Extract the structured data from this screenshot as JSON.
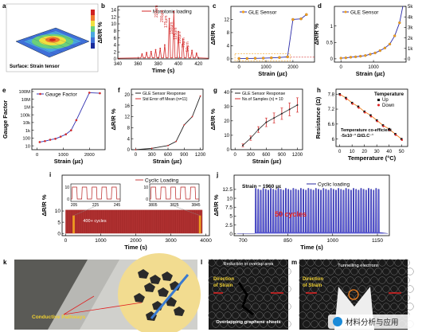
{
  "panels": {
    "a": {
      "letter": "a",
      "caption": "Surface: Strain tensor"
    },
    "b": {
      "letter": "b",
      "legend": "Monotonic loading",
      "peak_labels": [
        "222μm",
        "200μm",
        "175μm",
        "150μm",
        "125μm",
        "100μm",
        "75μm",
        "50μm"
      ]
    },
    "c": {
      "letter": "c",
      "legend": "GLE Sensor"
    },
    "d": {
      "letter": "d",
      "legend": "GLE Sensor",
      "right_ticks": [
        "5k",
        "4k",
        "3k",
        "2k",
        "1k",
        "0"
      ]
    },
    "e": {
      "letter": "e",
      "legend": "Gauge Factor"
    },
    "f": {
      "letter": "f",
      "legend": "GLE Sensor Response",
      "legend2": "Std Error off Mean (n=11)"
    },
    "g": {
      "letter": "g",
      "legend": "GLE Sensor Response",
      "legend2": "No.of Samples (n) = 10"
    },
    "h": {
      "letter": "h",
      "legend_title": "Temperature",
      "legend_up": "Up",
      "legend_down": "Down",
      "annotation1": "Temperature co-efficient",
      "annotation2": "-5x10⁻³ Ω/Ω.C⁻¹"
    },
    "i": {
      "letter": "i",
      "legend": "Cyclic Loading",
      "cycles_label": "400+ cycles",
      "inset1_ticks": [
        "205",
        "225",
        "245"
      ],
      "inset2_ticks": [
        "3805",
        "3825",
        "3845"
      ],
      "inset_y0": "0",
      "inset_y10": "10"
    },
    "j": {
      "letter": "j",
      "strain_label": "Strain ~ 1960 με",
      "legend": "Cyclic loading",
      "cycles_label": "50 cycles"
    },
    "k": {
      "letter": "k",
      "label": "Conductive Pathways"
    },
    "l": {
      "letter": "l",
      "label_top": "Reduction in overlap area",
      "direction": "Direction of Strain",
      "label_bottom": "Overlapping graphene sheets"
    },
    "m": {
      "letter": "m",
      "label_top": "Tunnelling electrons",
      "direction": "Direction of Strain"
    }
  },
  "watermark": "材料分析与应用",
  "chart_data": [
    {
      "panel": "b",
      "type": "line",
      "xlabel": "Time (s)",
      "ylabel": "ΔR/R %",
      "xticks": [
        340,
        360,
        380,
        400,
        420
      ],
      "yticks": [
        0,
        2,
        4,
        6,
        8,
        10,
        12,
        14
      ],
      "xlim": [
        340,
        430
      ],
      "ylim": [
        0,
        15
      ],
      "series": [
        {
          "name": "Monotonic loading",
          "x": [
            364,
            368.5,
            373,
            377.5,
            382,
            386.5,
            391,
            395.5,
            400,
            404.5,
            409,
            413.5,
            418
          ],
          "values": [
            1.4,
            1.8,
            2.1,
            2.6,
            3.0,
            4.0,
            11.5,
            13.5,
            7.8,
            5.6,
            3.4,
            2.4,
            1.6
          ]
        }
      ]
    },
    {
      "panel": "c",
      "type": "line",
      "xlabel": "Strain (με)",
      "ylabel": "ΔR/R %",
      "xticks": [
        0,
        1000,
        2000
      ],
      "yticks": [
        0,
        4,
        8,
        12
      ],
      "xlim": [
        -300,
        2800
      ],
      "ylim": [
        -1,
        16
      ],
      "series": [
        {
          "name": "GLE Sensor",
          "x": [
            0,
            300,
            600,
            900,
            1200,
            1500,
            1800,
            2000,
            2300,
            2500
          ],
          "values": [
            0.1,
            0.1,
            0.15,
            0.2,
            0.3,
            0.4,
            0.6,
            12.0,
            12.2,
            13.5
          ]
        }
      ]
    },
    {
      "panel": "d",
      "type": "line",
      "xlabel": "Strain (με)",
      "ylabel": "ΔR/R %",
      "xticks": [
        0,
        1000
      ],
      "yticks": [
        0.0,
        0.5,
        1.0
      ],
      "xlim": [
        -200,
        2000
      ],
      "ylim": [
        -0.1,
        1.6
      ],
      "series": [
        {
          "name": "GLE Sensor",
          "x": [
            0,
            150,
            300,
            450,
            600,
            750,
            900,
            1050,
            1200,
            1350,
            1500,
            1650,
            1800
          ],
          "values": [
            0.02,
            0.03,
            0.05,
            0.06,
            0.08,
            0.1,
            0.14,
            0.18,
            0.25,
            0.33,
            0.45,
            0.7,
            1.1
          ]
        }
      ]
    },
    {
      "panel": "e",
      "type": "line",
      "xlabel": "Strain (με)",
      "ylabel": "Gauge Factor",
      "yticks": [
        "10",
        "100",
        "1k",
        "10k",
        "100k",
        "1M",
        "10M",
        "100M"
      ],
      "xticks": [
        0,
        1000,
        2000
      ],
      "xlim": [
        -200,
        2600
      ],
      "ylim_log10": [
        0.5,
        8.3
      ],
      "yscale": "log",
      "series": [
        {
          "name": "Gauge Factor",
          "x": [
            100,
            300,
            500,
            700,
            900,
            1100,
            1300,
            1500,
            2000,
            2400
          ],
          "values": [
            30,
            40,
            60,
            80,
            150,
            300,
            1000,
            20000,
            70000000,
            60000000
          ]
        }
      ]
    },
    {
      "panel": "f",
      "type": "line",
      "xlabel": "Strain (με)",
      "ylabel": "ΔR/R %",
      "xticks": [
        0,
        300,
        600,
        900,
        1200
      ],
      "yticks": [
        0,
        4,
        8,
        12,
        16,
        20
      ],
      "xlim": [
        -80,
        1250
      ],
      "ylim": [
        0,
        22
      ],
      "series": [
        {
          "name": "GLE Sensor Response",
          "x": [
            0,
            300,
            600,
            750,
            900,
            1050,
            1200
          ],
          "values": [
            0,
            0.5,
            1.5,
            3,
            9,
            12,
            19.5
          ]
        }
      ]
    },
    {
      "panel": "g",
      "type": "line",
      "xlabel": "Strain (με)",
      "ylabel": "ΔR/R %",
      "xticks": [
        0,
        300,
        600,
        900,
        1200
      ],
      "yticks": [
        0,
        10,
        20,
        30,
        40
      ],
      "xlim": [
        -80,
        1300
      ],
      "ylim": [
        0,
        42
      ],
      "series": [
        {
          "name": "GLE Sensor Response",
          "x": [
            150,
            300,
            450,
            600,
            750,
            900,
            1050,
            1200
          ],
          "values": [
            3,
            8,
            14,
            19,
            22,
            25,
            28,
            31
          ],
          "err": [
            1,
            1.5,
            2,
            3,
            3.5,
            4,
            4.5,
            5
          ]
        }
      ]
    },
    {
      "panel": "h",
      "type": "scatter",
      "xlabel": "Temperature (°C)",
      "ylabel": "Resistance (Ω)",
      "xticks": [
        0,
        10,
        20,
        30,
        40,
        50
      ],
      "yticks": [
        6.0,
        6.6,
        7.2,
        7.8
      ],
      "xlim": [
        -3,
        55
      ],
      "ylim": [
        5.7,
        8.0
      ],
      "series": [
        {
          "name": "Up",
          "x": [
            0,
            5,
            10,
            15,
            20,
            25,
            30,
            35,
            40,
            45,
            50
          ],
          "values": [
            7.8,
            7.65,
            7.45,
            7.3,
            7.1,
            6.95,
            6.75,
            6.55,
            6.4,
            6.2,
            6.0
          ]
        },
        {
          "name": "Down",
          "x": [
            0,
            5,
            10,
            15,
            20,
            25,
            30,
            35,
            40,
            45,
            50
          ],
          "values": [
            7.78,
            7.62,
            7.43,
            7.27,
            7.08,
            6.92,
            6.73,
            6.53,
            6.37,
            6.18,
            5.98
          ]
        }
      ]
    },
    {
      "panel": "i",
      "type": "line",
      "xlabel": "Time (s)",
      "ylabel": "ΔR/R %",
      "xticks": [
        0,
        1000,
        2000,
        3000,
        4000
      ],
      "yticks": [
        0,
        5,
        10
      ],
      "xlim": [
        -100,
        4100
      ],
      "ylim": [
        -1,
        26
      ],
      "series": [
        {
          "name": "Cyclic Loading",
          "cycles": 400,
          "amplitude": 10
        }
      ]
    },
    {
      "panel": "j",
      "type": "line",
      "xlabel": "Time (s)",
      "ylabel": "ΔR/R %",
      "xticks": [
        700,
        850,
        1000,
        1150
      ],
      "yticks": [
        0.0,
        2.5,
        5.0,
        7.5,
        10.0,
        12.5
      ],
      "xlim": [
        670,
        1190
      ],
      "ylim": [
        -0.5,
        16.5
      ],
      "series": [
        {
          "name": "Cyclic loading",
          "cycles": 50,
          "x_start": 740,
          "x_end": 1160,
          "high": 12.8
        }
      ]
    }
  ]
}
